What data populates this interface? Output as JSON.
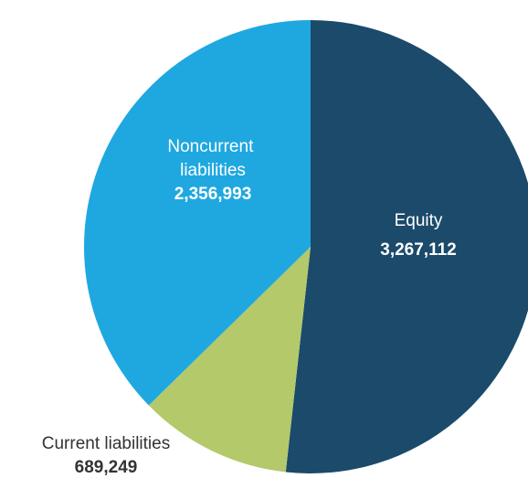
{
  "chart_data": {
    "type": "pie",
    "categories": [
      "Equity",
      "Current liabilities",
      "Noncurrent liabilities"
    ],
    "values": [
      3267112,
      689249,
      2356993
    ],
    "value_labels": [
      "3,267,112",
      "689,249",
      "2,356,993"
    ],
    "colors": [
      "#1b4a6b",
      "#b3c96a",
      "#1fa8e0"
    ]
  }
}
